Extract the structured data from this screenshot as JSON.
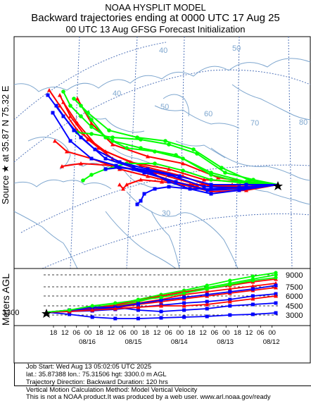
{
  "header": {
    "line1": "NOAA HYSPLIT MODEL",
    "line2": "Backward trajectories ending at 0000 UTC 17 Aug 25",
    "line3": "00 UTC 13 Aug    GFSG  Forecast Initialization"
  },
  "source_label": "Source ★ at   35.87 N   75.32 E",
  "source": {
    "lat": 35.87,
    "lon": 75.32
  },
  "map": {
    "grid_labels": [
      "40",
      "50",
      "60",
      "70",
      "80",
      "30",
      "40",
      "50"
    ],
    "colors": {
      "red": "#ff0000",
      "blue": "#0000ff",
      "green": "#00ff00",
      "coast": "#7fa7cf"
    }
  },
  "vertical": {
    "axis_label": "Meters AGL",
    "start_height": "3300",
    "levels": [
      "9000",
      "7500",
      "6000",
      "4500",
      "3000"
    ],
    "hour_ticks": [
      "18",
      "12",
      "06",
      "00",
      "18",
      "12",
      "06",
      "00",
      "18",
      "12",
      "06",
      "00",
      "18",
      "12",
      "06",
      "00",
      "18",
      "12",
      "06",
      "00"
    ],
    "date_ticks": [
      "08/16",
      "08/15",
      "08/14",
      "08/13",
      "08/12"
    ]
  },
  "footer": {
    "line1": "Job Start: Wed Aug 13 05:02:05 UTC 2025",
    "line2": "lat.: 35.87388   lon.: 75.31506   hgt: 3300.0 m AGL",
    "line3": "Trajectory Direction: Backward        Duration: 120 hrs",
    "line4": "Vertical Motion Calculation Method: Model Vertical Velocity",
    "line5": "This is not a NOAA product.It was produced by a web user. www.arl.noaa.gov/ready"
  }
}
